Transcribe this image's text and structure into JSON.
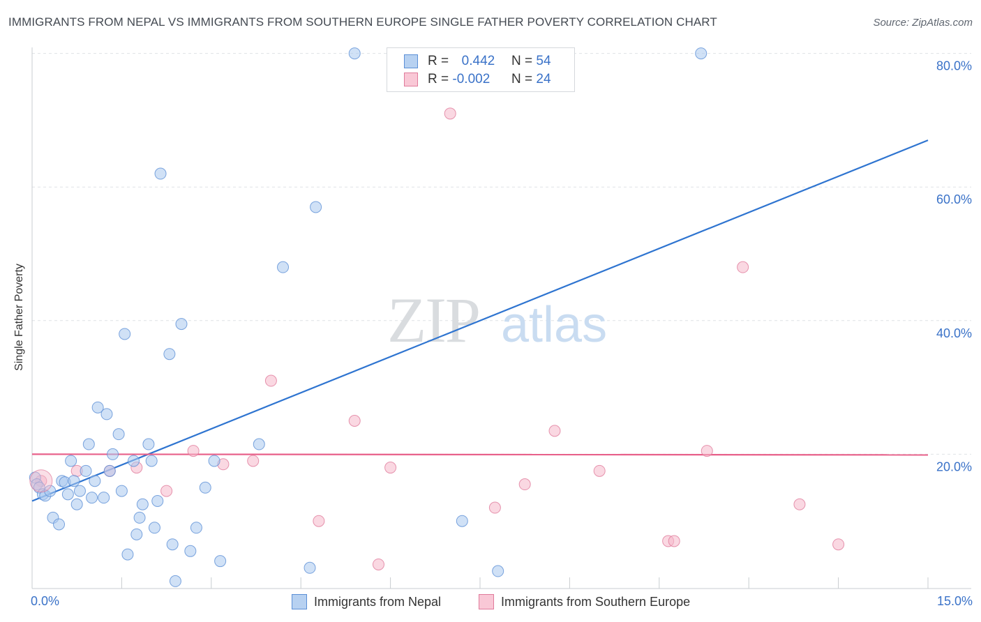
{
  "title": "IMMIGRANTS FROM NEPAL VS IMMIGRANTS FROM SOUTHERN EUROPE SINGLE FATHER POVERTY CORRELATION CHART",
  "source": "Source: ZipAtlas.com",
  "watermark": {
    "zip": "ZIP",
    "atlas": "atlas"
  },
  "colors": {
    "nepal_fill": "#a9c8ef",
    "nepal_stroke": "#5b8fd6",
    "nepal_line": "#2e74d0",
    "se_fill": "#f5b8ca",
    "se_stroke": "#e07b9b",
    "se_line": "#e8608a",
    "grid": "#dfe2e6",
    "tick_label": "#3a72c8"
  },
  "legend_top": {
    "rows": [
      {
        "r_label": "R =",
        "r_value": "0.442",
        "n_label": "N =",
        "n_value": "54"
      },
      {
        "r_label": "R =",
        "r_value": "-0.002",
        "n_label": "N =",
        "n_value": "24"
      }
    ]
  },
  "chart_data": {
    "type": "scatter",
    "title": "IMMIGRANTS FROM NEPAL VS IMMIGRANTS FROM SOUTHERN EUROPE SINGLE FATHER POVERTY CORRELATION CHART",
    "xlabel": "",
    "ylabel": "Single Father Poverty",
    "xlim": [
      0,
      15
    ],
    "ylim": [
      0,
      80
    ],
    "x_tick_labels": [
      "0.0%",
      "15.0%"
    ],
    "y_ticks": [
      20,
      40,
      60,
      80
    ],
    "y_tick_labels": [
      "20.0%",
      "40.0%",
      "60.0%",
      "80.0%"
    ],
    "grid": true,
    "legend_position": "bottom",
    "series": [
      {
        "name": "Immigrants from Nepal",
        "points": [
          [
            0.05,
            16.5
          ],
          [
            0.08,
            15.5
          ],
          [
            0.12,
            15.0
          ],
          [
            0.18,
            14.0
          ],
          [
            0.22,
            13.8
          ],
          [
            0.3,
            14.5
          ],
          [
            0.35,
            10.5
          ],
          [
            0.45,
            9.5
          ],
          [
            0.5,
            16.0
          ],
          [
            0.55,
            15.8
          ],
          [
            0.65,
            19.0
          ],
          [
            0.7,
            16.0
          ],
          [
            0.75,
            12.5
          ],
          [
            0.8,
            14.5
          ],
          [
            0.9,
            17.5
          ],
          [
            0.95,
            21.5
          ],
          [
            1.0,
            13.5
          ],
          [
            1.05,
            16.0
          ],
          [
            1.1,
            27.0
          ],
          [
            1.2,
            13.5
          ],
          [
            1.25,
            26.0
          ],
          [
            1.3,
            17.5
          ],
          [
            1.35,
            20.0
          ],
          [
            1.45,
            23.0
          ],
          [
            1.5,
            14.5
          ],
          [
            1.55,
            38.0
          ],
          [
            1.6,
            5.0
          ],
          [
            1.7,
            19.0
          ],
          [
            1.75,
            8.0
          ],
          [
            1.8,
            10.5
          ],
          [
            1.85,
            12.5
          ],
          [
            1.95,
            21.5
          ],
          [
            2.0,
            19.0
          ],
          [
            2.05,
            9.0
          ],
          [
            2.1,
            13.0
          ],
          [
            2.15,
            62.0
          ],
          [
            2.3,
            35.0
          ],
          [
            2.35,
            6.5
          ],
          [
            2.4,
            1.0
          ],
          [
            2.5,
            39.5
          ],
          [
            2.65,
            5.5
          ],
          [
            2.75,
            9.0
          ],
          [
            2.9,
            15.0
          ],
          [
            3.05,
            19.0
          ],
          [
            3.15,
            4.0
          ],
          [
            3.8,
            21.5
          ],
          [
            4.2,
            48.0
          ],
          [
            4.65,
            3.0
          ],
          [
            4.75,
            57.0
          ],
          [
            5.4,
            80.0
          ],
          [
            7.2,
            10.0
          ],
          [
            7.8,
            2.5
          ],
          [
            11.2,
            80.0
          ],
          [
            0.6,
            14.0
          ]
        ]
      },
      {
        "name": "Immigrants from Southern Europe",
        "points": [
          [
            0.15,
            16.0
          ],
          [
            0.75,
            17.5
          ],
          [
            1.3,
            17.5
          ],
          [
            1.75,
            18.0
          ],
          [
            2.25,
            14.5
          ],
          [
            2.7,
            20.5
          ],
          [
            3.2,
            18.5
          ],
          [
            3.7,
            19.0
          ],
          [
            4.0,
            31.0
          ],
          [
            4.8,
            10.0
          ],
          [
            5.4,
            25.0
          ],
          [
            5.8,
            3.5
          ],
          [
            6.0,
            18.0
          ],
          [
            7.0,
            71.0
          ],
          [
            7.75,
            12.0
          ],
          [
            8.25,
            15.5
          ],
          [
            8.75,
            23.5
          ],
          [
            9.5,
            17.5
          ],
          [
            10.65,
            7.0
          ],
          [
            10.75,
            7.0
          ],
          [
            11.3,
            20.5
          ],
          [
            11.9,
            48.0
          ],
          [
            12.85,
            12.5
          ],
          [
            13.5,
            6.5
          ]
        ]
      }
    ],
    "trend_lines": [
      {
        "series": "Immigrants from Nepal",
        "x": [
          0,
          15
        ],
        "y": [
          13.0,
          67.0
        ]
      },
      {
        "series": "Immigrants from Southern Europe",
        "x": [
          0,
          15
        ],
        "y": [
          20.0,
          19.9
        ]
      }
    ]
  }
}
